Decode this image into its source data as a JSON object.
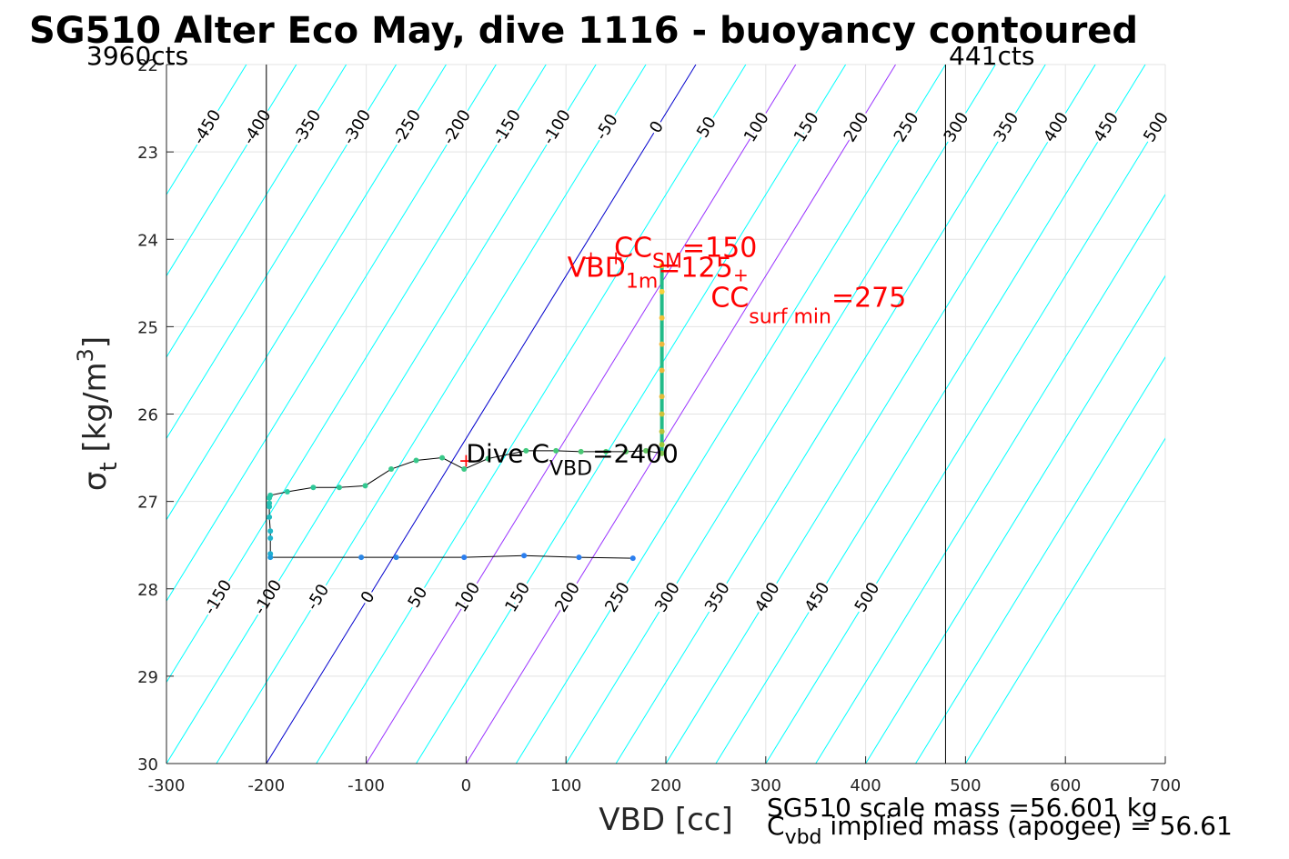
{
  "chart_data": {
    "type": "scatter",
    "title": "SG510 Alter Eco May, dive 1116 - buoyancy contoured",
    "xlabel": "VBD [cc]",
    "ylabel": "σ_t [kg/m^3]",
    "xlim": [
      -300,
      700
    ],
    "ylim": [
      30,
      22
    ],
    "y_reversed": true,
    "xticks": [
      -300,
      -200,
      -100,
      0,
      100,
      200,
      300,
      400,
      500,
      600,
      700
    ],
    "yticks": [
      22,
      23,
      24,
      25,
      26,
      27,
      28,
      29,
      30
    ],
    "xtick_labels": [
      "-300",
      "-200",
      "-100",
      "0",
      "100",
      "200",
      "300",
      "400",
      "500",
      "600",
      "700"
    ],
    "ytick_labels": [
      "22",
      "23",
      "24",
      "25",
      "26",
      "27",
      "28",
      "29",
      "30"
    ],
    "grid": true,
    "limits_text": {
      "left": "3960cts",
      "right": "441cts"
    },
    "limit_lines": {
      "min_vbd": -200,
      "max_vbd": 480
    },
    "contours": {
      "color_default": "#00ffff",
      "color_zero": "#0000cd",
      "color_highlight": "#9933ff",
      "highlight_levels": [
        100,
        200
      ],
      "levels": [
        -450,
        -400,
        -350,
        -300,
        -250,
        -200,
        -150,
        -100,
        -50,
        0,
        50,
        100,
        150,
        200,
        250,
        300,
        350,
        400,
        450,
        500,
        550,
        600,
        650,
        700
      ],
      "zero_line": {
        "x_at_sigma30": -200,
        "x_at_sigma22": 230
      },
      "spacing_cc": 50
    },
    "contour_labels_top": [
      {
        "level": -450,
        "text": "-450"
      },
      {
        "level": -400,
        "text": "-400"
      },
      {
        "level": -350,
        "text": "-350"
      },
      {
        "level": -300,
        "text": "-300"
      },
      {
        "level": -250,
        "text": "-250"
      },
      {
        "level": -200,
        "text": "-200"
      },
      {
        "level": -150,
        "text": "-150"
      },
      {
        "level": -100,
        "text": "-100"
      },
      {
        "level": -50,
        "text": "-50"
      },
      {
        "level": 0,
        "text": "0"
      },
      {
        "level": 50,
        "text": "50"
      },
      {
        "level": 100,
        "text": "100"
      },
      {
        "level": 150,
        "text": "150"
      },
      {
        "level": 200,
        "text": "200"
      },
      {
        "level": 250,
        "text": "250"
      },
      {
        "level": 300,
        "text": "300"
      },
      {
        "level": 350,
        "text": "350"
      },
      {
        "level": 400,
        "text": "400"
      },
      {
        "level": 450,
        "text": "450"
      },
      {
        "level": 500,
        "text": "500"
      }
    ],
    "contour_labels_bottom": [
      {
        "level": -150,
        "text": "-150"
      },
      {
        "level": -100,
        "text": "-100"
      },
      {
        "level": -50,
        "text": "-50"
      },
      {
        "level": 0,
        "text": "0"
      },
      {
        "level": 50,
        "text": "50"
      },
      {
        "level": 100,
        "text": "100"
      },
      {
        "level": 150,
        "text": "150"
      },
      {
        "level": 200,
        "text": "200"
      },
      {
        "level": 250,
        "text": "250"
      },
      {
        "level": 300,
        "text": "300"
      },
      {
        "level": 350,
        "text": "350"
      },
      {
        "level": 400,
        "text": "400"
      },
      {
        "level": 450,
        "text": "450"
      },
      {
        "level": 500,
        "text": "500"
      }
    ],
    "series": [
      {
        "color": "#22bb88",
        "x": [
          196,
          196,
          196,
          196,
          196,
          196,
          196,
          196,
          196,
          196
        ],
        "y": [
          24.3,
          24.6,
          24.9,
          25.2,
          25.5,
          25.8,
          26.0,
          26.2,
          26.35,
          26.45
        ],
        "marker_colors": [
          "#f5e021",
          "#f7d23a",
          "#f0c23a",
          "#f0b83c",
          "#eeb83a",
          "#e2bb3a",
          "#d0c23a",
          "#b8c43a",
          "#a0c83a",
          "#80c850"
        ]
      },
      {
        "color": "#000000",
        "x": [
          196,
          180,
          160,
          140,
          115,
          90,
          60,
          22,
          -2,
          -24,
          -50,
          -75,
          -101,
          -127,
          -153,
          -179,
          -196,
          -197,
          -197,
          -197,
          -197,
          -196,
          -196,
          -196
        ],
        "y": [
          26.45,
          26.42,
          26.43,
          26.43,
          26.43,
          26.42,
          26.42,
          26.51,
          26.63,
          26.5,
          26.53,
          26.63,
          26.82,
          26.84,
          26.84,
          26.89,
          26.93,
          26.96,
          27.02,
          27.06,
          27.18,
          27.34,
          27.42,
          27.6
        ],
        "marker_colors": [
          "#80c850",
          "#66c862",
          "#5cc86a",
          "#50c870",
          "#4ac874",
          "#44c878",
          "#40c87c",
          "#3cc880",
          "#3ac884",
          "#38c888",
          "#36c88a",
          "#34c88c",
          "#32c890",
          "#30c894",
          "#2ec898",
          "#2cc8a0",
          "#2ac8a6",
          "#28c8aa",
          "#26c4b0",
          "#24c0b8",
          "#22bcc0",
          "#20b8c8",
          "#1fb4cc",
          "#1eb0d0"
        ]
      },
      {
        "color": "#000000",
        "x": [
          -196,
          -105,
          -70,
          -2,
          58,
          113,
          167
        ],
        "y": [
          27.64,
          27.64,
          27.64,
          27.64,
          27.62,
          27.64,
          27.65
        ],
        "marker_colors": [
          "#1e9cdc",
          "#2a86e6",
          "#2a86e6",
          "#2a7ef0",
          "#2a7ef0",
          "#2a7ef0",
          "#2a7ef0"
        ]
      }
    ],
    "markers": [
      {
        "label_main": "CC",
        "label_sub": "SM",
        "label_value": "=150",
        "x": 150,
        "y": 24.2
      },
      {
        "label_main": "VBD",
        "label_sub": "1m",
        "label_value": "=125",
        "x": 125,
        "y": 24.2
      },
      {
        "label_main": "CC",
        "label_sub": "surf min",
        "label_value": "=275",
        "x": 275,
        "y": 24.4
      },
      {
        "label_main": "Dive C",
        "label_sub": "VBD",
        "label_value": "=2400",
        "x": 0,
        "y": 26.52
      }
    ],
    "notes": {
      "scale_mass": "SG510 scale mass =56.601 kg",
      "implied_mass_prefix": "C",
      "implied_mass_sub": "vbd",
      "implied_mass_rest": " implied mass (apogee) = 56.61"
    }
  }
}
